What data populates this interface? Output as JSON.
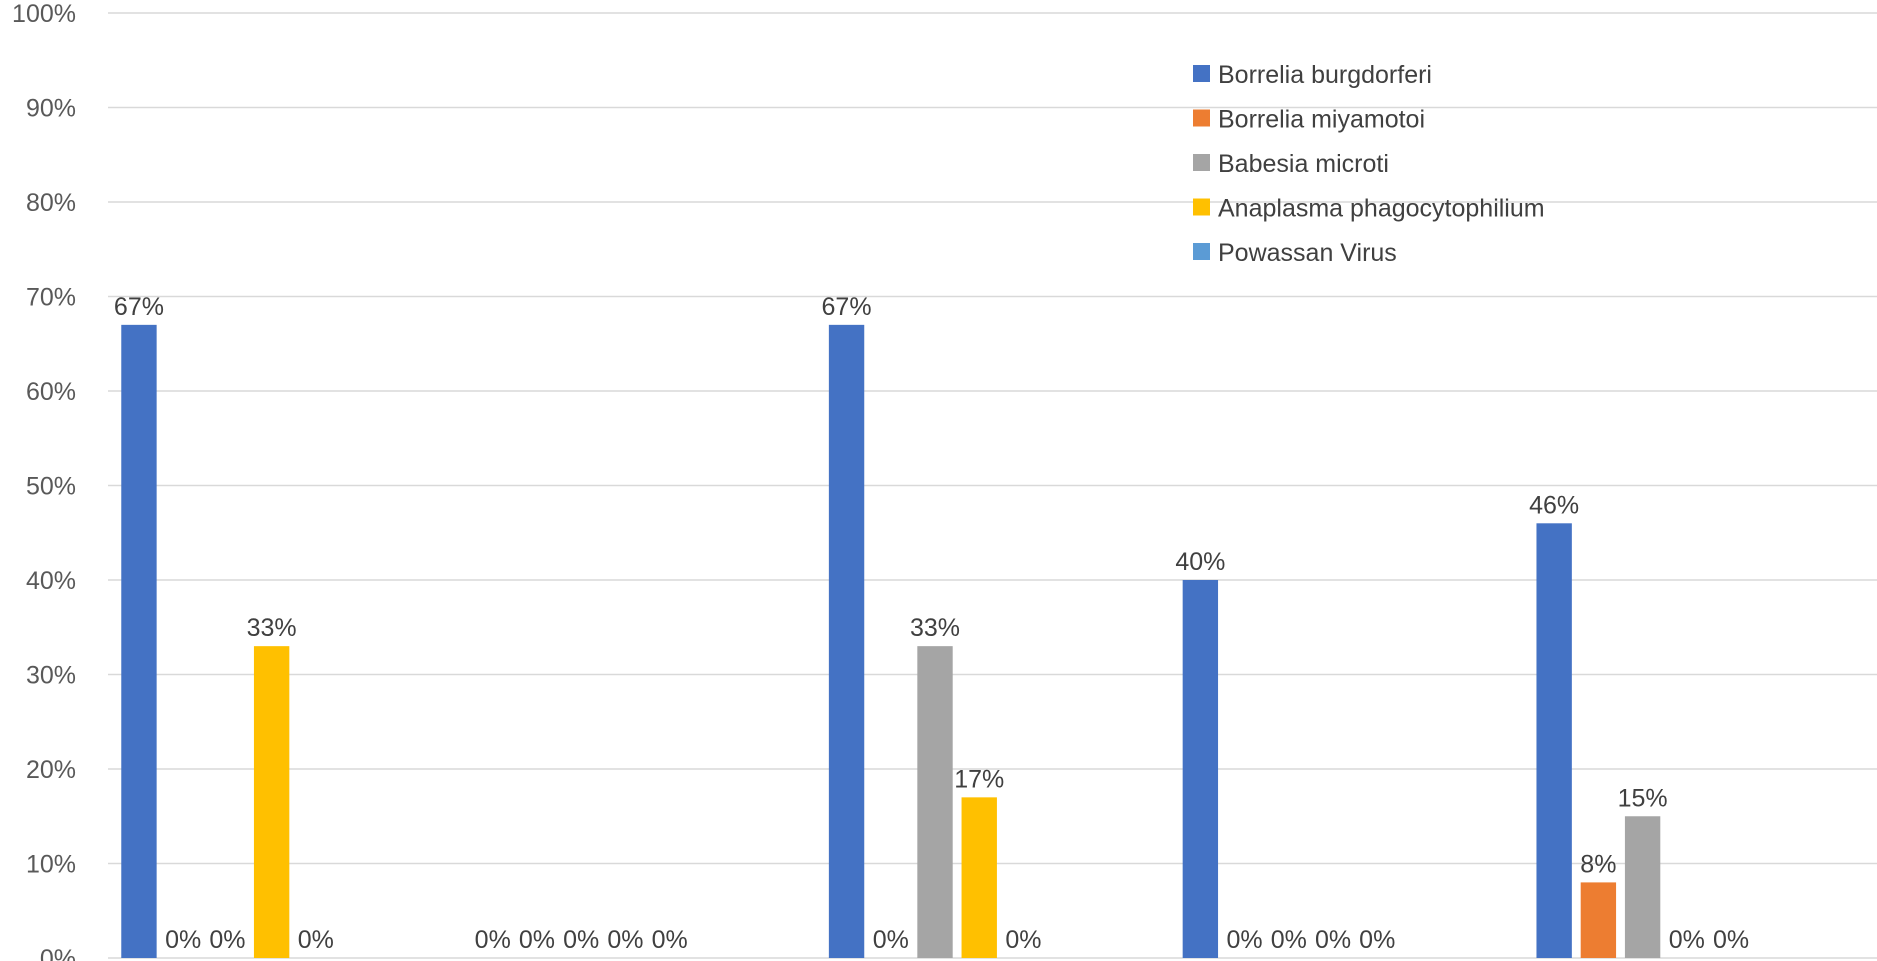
{
  "chart_data": {
    "type": "bar",
    "title": "",
    "xlabel": "",
    "ylabel": "",
    "ylim": [
      0,
      100
    ],
    "y_ticks": [
      "0%",
      "10%",
      "20%",
      "30%",
      "40%",
      "50%",
      "60%",
      "70%",
      "80%",
      "90%",
      "100%"
    ],
    "categories": [
      "",
      "",
      "",
      "",
      ""
    ],
    "grid": true,
    "legend_position": "top-right",
    "series": [
      {
        "name": "Borrelia burgdorferi",
        "color": "#4472C4",
        "values": [
          67,
          0,
          67,
          40,
          46
        ]
      },
      {
        "name": "Borrelia miyamotoi",
        "color": "#ED7D31",
        "values": [
          0,
          0,
          0,
          0,
          8
        ]
      },
      {
        "name": "Babesia microti",
        "color": "#A5A5A5",
        "values": [
          0,
          0,
          33,
          0,
          15
        ]
      },
      {
        "name": "Anaplasma phagocytophilium",
        "color": "#FFC000",
        "values": [
          33,
          0,
          17,
          0,
          0
        ]
      },
      {
        "name": "Powassan Virus",
        "color": "#5B9BD5",
        "values": [
          0,
          0,
          0,
          0,
          0
        ]
      }
    ],
    "value_suffix": "%"
  }
}
